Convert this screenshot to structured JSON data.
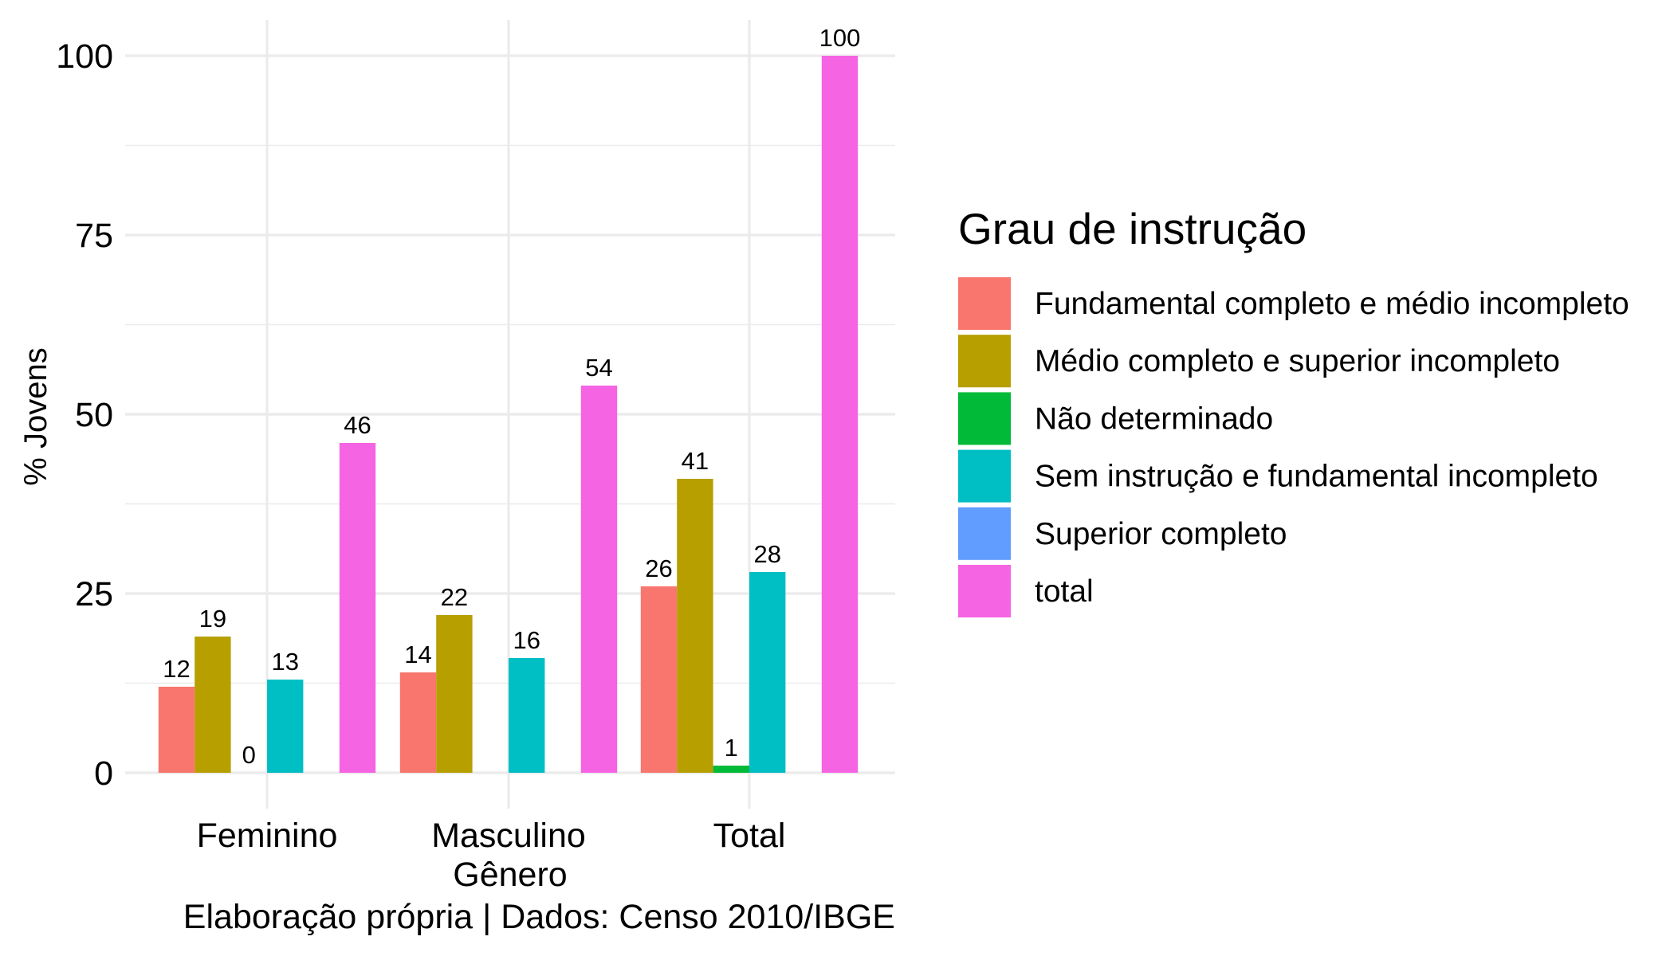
{
  "chart_data": {
    "type": "bar",
    "categories": [
      "Feminino",
      "Masculino",
      "Total"
    ],
    "xlabel": "Gênero",
    "ylabel": "% Jovens",
    "ylim": [
      0,
      100
    ],
    "yticks": [
      0,
      25,
      50,
      75,
      100
    ],
    "grid": true,
    "caption": "Elaboração própria | Dados: Censo 2010/IBGE",
    "legend": {
      "title": "Grau de instrução",
      "position": "right"
    },
    "series": [
      {
        "name": "Fundamental completo e médio incompleto",
        "color": "#F8766D",
        "values": [
          12,
          14,
          26
        ],
        "labels": [
          "12",
          "14",
          "26"
        ]
      },
      {
        "name": "Médio completo e superior incompleto",
        "color": "#B79F00",
        "values": [
          19,
          22,
          41
        ],
        "labels": [
          "19",
          "22",
          "41"
        ]
      },
      {
        "name": "Não determinado",
        "color": "#00BA38",
        "values": [
          0,
          null,
          1
        ],
        "labels": [
          "0",
          null,
          "1"
        ]
      },
      {
        "name": "Sem instrução e fundamental incompleto",
        "color": "#00BFC4",
        "values": [
          13,
          16,
          28
        ],
        "labels": [
          "13",
          "16",
          "28"
        ]
      },
      {
        "name": "Superior completo",
        "color": "#619CFF",
        "values": [
          null,
          null,
          null
        ],
        "labels": [
          null,
          null,
          null
        ]
      },
      {
        "name": "total",
        "color": "#F564E3",
        "values": [
          46,
          54,
          100
        ],
        "labels": [
          "46",
          "54",
          "100"
        ]
      }
    ]
  }
}
